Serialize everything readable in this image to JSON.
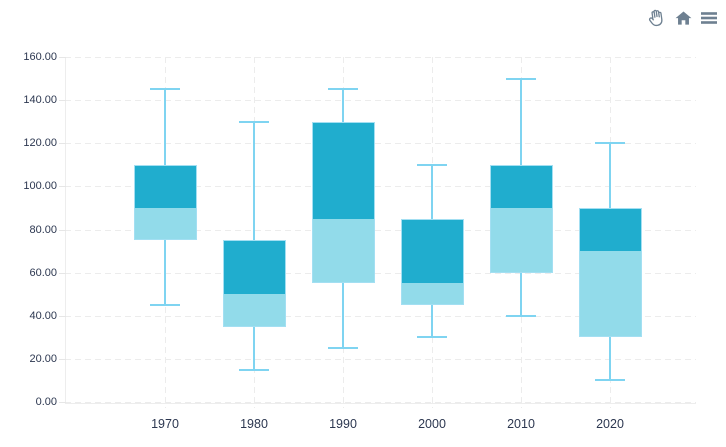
{
  "toolbar": {
    "icons": [
      {
        "name": "pan-hand-icon",
        "tooltip_label": "Pan"
      },
      {
        "name": "home-icon",
        "tooltip_label": "Reset"
      },
      {
        "name": "menu-icon",
        "tooltip_label": "Menu"
      }
    ]
  },
  "chart_data": {
    "type": "boxplot",
    "title": "",
    "xlabel": "",
    "ylabel": "",
    "grid": true,
    "legend": "none",
    "ylim": [
      0,
      160
    ],
    "yticks": [
      {
        "value": 160,
        "label": "160.00"
      },
      {
        "value": 140,
        "label": "140.00"
      },
      {
        "value": 120,
        "label": "120.00"
      },
      {
        "value": 100,
        "label": "100.00"
      },
      {
        "value": 80,
        "label": "80.00"
      },
      {
        "value": 60,
        "label": "60.00"
      },
      {
        "value": 40,
        "label": "40.00"
      },
      {
        "value": 20,
        "label": "20.00"
      },
      {
        "value": 0,
        "label": "0.00"
      }
    ],
    "categories": [
      "1970",
      "1980",
      "1990",
      "2000",
      "2010",
      "2020"
    ],
    "series": [
      {
        "name": "box-series",
        "points": [
          {
            "low": 45,
            "q1": 75,
            "median": 90,
            "q3": 110,
            "high": 145
          },
          {
            "low": 15,
            "q1": 35,
            "median": 50,
            "q3": 75,
            "high": 130
          },
          {
            "low": 25,
            "q1": 55,
            "median": 85,
            "q3": 130,
            "high": 145
          },
          {
            "low": 30,
            "q1": 45,
            "median": 55,
            "q3": 85,
            "high": 110
          },
          {
            "low": 40,
            "q1": 60,
            "median": 90,
            "q3": 110,
            "high": 150
          },
          {
            "low": 10,
            "q1": 30,
            "median": 70,
            "q3": 90,
            "high": 120
          }
        ]
      }
    ],
    "colors": {
      "box_upper": "#20adce",
      "box_lower": "#92dbea",
      "box_border": "#a3dff2",
      "whisker": "#7fd4f1",
      "grid": "#ececec",
      "axis": "#ededed",
      "label": "#2c3750",
      "icon": "#6e8091"
    }
  }
}
